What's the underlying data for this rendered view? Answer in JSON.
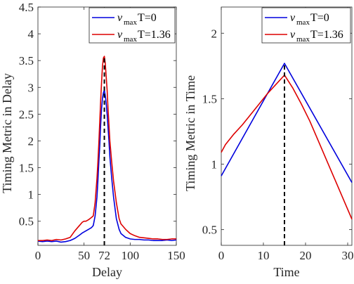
{
  "chart_data": [
    {
      "type": "line",
      "xlabel": "Delay",
      "ylabel": "Timing Metric in Delay",
      "xlim": [
        0,
        150
      ],
      "ylim": [
        0.05,
        4.5
      ],
      "xticks": [
        0,
        50,
        72,
        100,
        150
      ],
      "xtick_labels": [
        "0",
        "50",
        "72",
        "100",
        "150"
      ],
      "yticks": [
        0.5,
        1,
        1.5,
        2,
        2.5,
        3,
        3.5,
        4,
        4.5
      ],
      "ytick_labels": [
        "0.5",
        "1",
        "1.5",
        "2",
        "2.5",
        "3",
        "3.5",
        "4",
        "4.5"
      ],
      "marker_x": 72,
      "legend": {
        "position": "top-right",
        "entries": [
          {
            "symbol": "ν",
            "sub": "max",
            "text": "T=0",
            "color": "#0000dd"
          },
          {
            "symbol": "ν",
            "sub": "max",
            "text": "T=1.36",
            "color": "#dd0000"
          }
        ]
      },
      "series": [
        {
          "color": "#0000dd",
          "x": [
            0,
            5,
            10,
            15,
            20,
            25,
            30,
            35,
            40,
            45,
            48,
            50,
            52,
            55,
            58,
            60,
            62,
            64,
            65,
            66,
            67,
            68,
            69,
            70,
            71,
            72,
            73,
            74,
            75,
            76,
            77,
            78,
            80,
            82,
            85,
            88,
            90,
            95,
            100,
            105,
            110,
            115,
            120,
            125,
            130,
            135,
            140,
            145,
            150
          ],
          "y": [
            0.13,
            0.12,
            0.13,
            0.12,
            0.13,
            0.11,
            0.12,
            0.14,
            0.18,
            0.24,
            0.28,
            0.3,
            0.32,
            0.35,
            0.38,
            0.42,
            0.6,
            0.95,
            1.25,
            1.6,
            1.9,
            2.3,
            2.6,
            2.8,
            2.9,
            2.95,
            2.85,
            2.7,
            2.5,
            2.25,
            2.0,
            1.7,
            1.3,
            0.95,
            0.55,
            0.35,
            0.27,
            0.2,
            0.17,
            0.16,
            0.16,
            0.15,
            0.15,
            0.14,
            0.14,
            0.14,
            0.15,
            0.14,
            0.15
          ]
        },
        {
          "color": "#dd0000",
          "x": [
            0,
            5,
            10,
            15,
            20,
            25,
            30,
            35,
            40,
            45,
            48,
            50,
            52,
            55,
            58,
            60,
            62,
            64,
            65,
            66,
            67,
            68,
            69,
            70,
            71,
            72,
            73,
            74,
            75,
            76,
            77,
            78,
            80,
            82,
            85,
            88,
            90,
            95,
            100,
            105,
            110,
            115,
            120,
            125,
            130,
            135,
            140,
            145,
            150
          ],
          "y": [
            0.14,
            0.14,
            0.15,
            0.14,
            0.16,
            0.15,
            0.17,
            0.2,
            0.32,
            0.42,
            0.48,
            0.5,
            0.5,
            0.53,
            0.57,
            0.6,
            0.85,
            1.3,
            1.6,
            1.95,
            2.35,
            2.75,
            3.1,
            3.4,
            3.55,
            3.58,
            3.45,
            3.2,
            2.95,
            2.6,
            2.3,
            2.0,
            1.6,
            1.25,
            0.85,
            0.55,
            0.45,
            0.35,
            0.27,
            0.23,
            0.2,
            0.19,
            0.18,
            0.17,
            0.17,
            0.16,
            0.16,
            0.17,
            0.17
          ]
        }
      ]
    },
    {
      "type": "line",
      "xlabel": "Time",
      "ylabel": "Timing Metric in Time",
      "xlim": [
        0,
        31
      ],
      "ylim": [
        0.38,
        2.2
      ],
      "xticks": [
        0,
        10,
        20,
        30
      ],
      "xtick_labels": [
        "0",
        "10",
        "20",
        "30"
      ],
      "yticks": [
        0.5,
        1,
        1.5,
        2
      ],
      "ytick_labels": [
        "0.5",
        "1",
        "1.5",
        "2"
      ],
      "marker_x": 15,
      "legend": {
        "position": "top-right",
        "entries": [
          {
            "symbol": "ν",
            "sub": "max",
            "text": "T=0",
            "color": "#0000dd"
          },
          {
            "symbol": "ν",
            "sub": "max",
            "text": "T=1.36",
            "color": "#dd0000"
          }
        ]
      },
      "series": [
        {
          "color": "#0000dd",
          "x": [
            0,
            15,
            31
          ],
          "y": [
            0.91,
            1.77,
            0.86
          ]
        },
        {
          "color": "#dd0000",
          "x": [
            0,
            1,
            3,
            5,
            7,
            9,
            11,
            13,
            15,
            17,
            19,
            21,
            23,
            25,
            27,
            29,
            31
          ],
          "y": [
            1.09,
            1.15,
            1.23,
            1.3,
            1.38,
            1.46,
            1.54,
            1.61,
            1.68,
            1.58,
            1.46,
            1.33,
            1.18,
            1.03,
            0.88,
            0.73,
            0.58
          ]
        }
      ]
    }
  ]
}
